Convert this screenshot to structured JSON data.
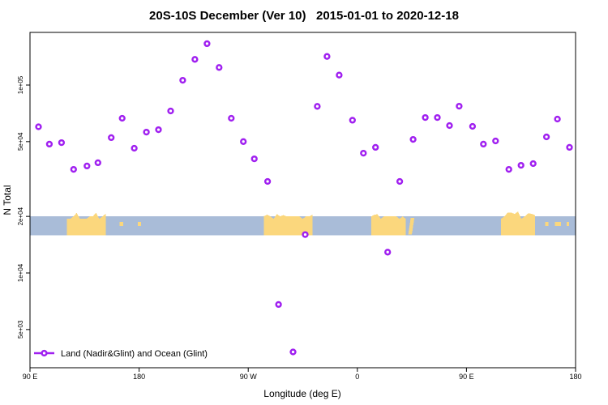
{
  "chart_data": {
    "type": "scatter",
    "title": "20S-10S December (Ver 10)   2015-01-01 to 2020-12-18",
    "xlabel": "Longitude (deg E)",
    "ylabel": "N Total",
    "x_axis": {
      "min": 90,
      "max": 540,
      "unit": "deg E (wrapping 90E→180→90W→0→90E→180)",
      "ticks": [
        {
          "lon": 90,
          "label": "90 E"
        },
        {
          "lon": 180,
          "label": "180"
        },
        {
          "lon": 270,
          "label": "90 W"
        },
        {
          "lon": 360,
          "label": "0"
        },
        {
          "lon": 450,
          "label": "90 E"
        },
        {
          "lon": 540,
          "label": "180"
        }
      ]
    },
    "y_axis": {
      "scale": "log",
      "range_approx": [
        3130,
        191000
      ],
      "ticks": [
        {
          "value": 100000,
          "label": "1e+05"
        },
        {
          "value": 50000,
          "label": "5e+04"
        },
        {
          "value": 20000,
          "label": "2e+04"
        },
        {
          "value": 10000,
          "label": "1e+04"
        },
        {
          "value": 5000,
          "label": "5e+03"
        }
      ]
    },
    "legend": {
      "label": "Land (Nadir&Glint) and Ocean (Glint)",
      "position": "bottom-left",
      "marker": "open-circle-on-line"
    },
    "series": [
      {
        "name": "Land (Nadir&Glint) and Ocean (Glint)",
        "marker": "open-circle",
        "color": "#a020f0",
        "points": [
          [
            97,
            60000
          ],
          [
            106,
            48500
          ],
          [
            116,
            49400
          ],
          [
            126,
            35600
          ],
          [
            137,
            37100
          ],
          [
            146,
            38600
          ],
          [
            157,
            52500
          ],
          [
            166,
            66600
          ],
          [
            176,
            46100
          ],
          [
            186,
            56200
          ],
          [
            196,
            57900
          ],
          [
            206,
            72800
          ],
          [
            216,
            106000
          ],
          [
            226,
            137000
          ],
          [
            236,
            166000
          ],
          [
            246,
            124000
          ],
          [
            256,
            66600
          ],
          [
            266,
            50000
          ],
          [
            275,
            40500
          ],
          [
            286,
            30700
          ],
          [
            295,
            6800
          ],
          [
            307,
            3800
          ],
          [
            317,
            16000
          ],
          [
            327,
            77000
          ],
          [
            335,
            142000
          ],
          [
            345,
            113000
          ],
          [
            356,
            65000
          ],
          [
            365,
            43400
          ],
          [
            375,
            46600
          ],
          [
            385,
            12900
          ],
          [
            395,
            30700
          ],
          [
            406,
            51400
          ],
          [
            416,
            67200
          ],
          [
            426,
            67200
          ],
          [
            436,
            60900
          ],
          [
            444,
            77200
          ],
          [
            455,
            60300
          ],
          [
            464,
            48500
          ],
          [
            474,
            50400
          ],
          [
            485,
            35600
          ],
          [
            495,
            37400
          ],
          [
            505,
            38200
          ],
          [
            516,
            53000
          ],
          [
            525,
            65900
          ],
          [
            535,
            46600
          ]
        ]
      }
    ],
    "map_band": {
      "description": "world map strip of the 20S-10S latitude band drawn across the plot",
      "ocean_color": "#a9bcd8",
      "land_color": "#fbd77d",
      "top_value": 20000,
      "bottom_value": 15900,
      "segments": [
        {
          "name": "australia-first-pass",
          "type": "continent",
          "relief": 7,
          "lon0": 120.5,
          "lon1": 152.5
        },
        {
          "name": "melanesia-islands",
          "type": "island",
          "lon0": 164,
          "lon1": 167
        },
        {
          "name": "fiji-islands",
          "type": "island",
          "lon0": 179,
          "lon1": 181.5
        },
        {
          "name": "south-america",
          "type": "continent",
          "relief": 3,
          "lon0": 283,
          "lon1": 323
        },
        {
          "name": "africa",
          "type": "continent",
          "relief": 3,
          "lon0": 371.5,
          "lon1": 400
        },
        {
          "name": "madagascar",
          "type": "island-tall",
          "lon0": 402,
          "lon1": 407
        },
        {
          "name": "australia-second-pass",
          "type": "continent",
          "relief": 7,
          "lon0": 478.5,
          "lon1": 506.5
        },
        {
          "name": "coral-sea-islands",
          "type": "island",
          "lon0": 515,
          "lon1": 517.5
        },
        {
          "name": "vanuatu-islands",
          "type": "island",
          "lon0": 523,
          "lon1": 528
        },
        {
          "name": "fiji-second-pass",
          "type": "island",
          "lon0": 532.5,
          "lon1": 534.5
        }
      ]
    },
    "colors": {
      "marker": "#a020f0",
      "axis": "#000000",
      "ocean": "#a9bcd8",
      "land": "#fbd77d",
      "background": "#ffffff"
    }
  }
}
